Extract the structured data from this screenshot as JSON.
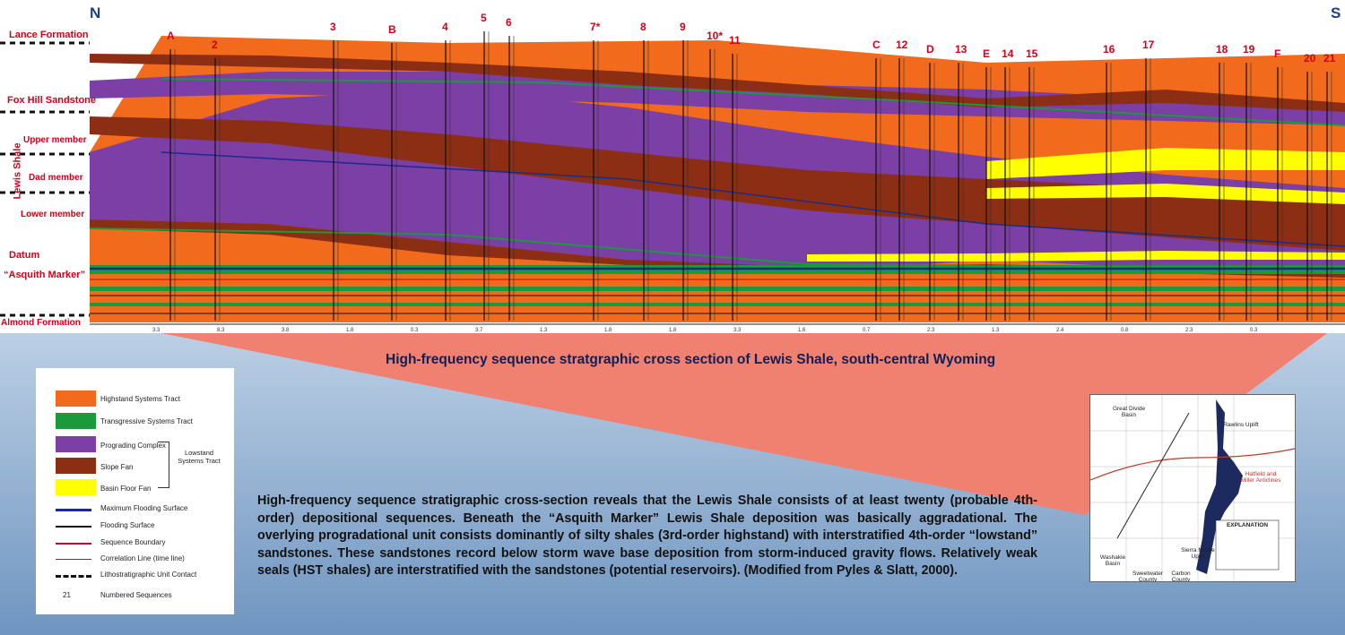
{
  "compass": {
    "north": "N",
    "south": "S"
  },
  "formations": [
    {
      "name": "Lance Formation"
    },
    {
      "name": "Fox Hill Sandstone"
    },
    {
      "name": "Upper member"
    },
    {
      "name": "Dad member"
    },
    {
      "name": "Lower member"
    },
    {
      "name": "Datum"
    },
    {
      "name": "“Asquith Marker”"
    },
    {
      "name": "Almond Formation"
    }
  ],
  "lewis_shale_label": "Lewis Shale",
  "wells": [
    "A",
    "2",
    "3",
    "B",
    "4",
    "5",
    "6",
    "7*",
    "8",
    "9",
    "10*",
    "11",
    "C",
    "12",
    "D",
    "13",
    "E",
    "14",
    "15",
    "16",
    "17",
    "18",
    "19",
    "F",
    "20",
    "21"
  ],
  "well_spacings": [
    "3.3",
    "8.3",
    "3.8",
    "1.8",
    "0.3",
    "3.7",
    "1.3",
    "1.8",
    "1.8",
    "3.3",
    "1.6",
    "0.7",
    "2.3",
    "1.3",
    "2.4",
    "0.8",
    "2.3",
    "0.3"
  ],
  "caption": "High-frequency sequence stratgraphic cross section of Lewis Shale, south-central Wyoming",
  "colors": {
    "highstand": "#f26a1b",
    "transgressive": "#1a9a3a",
    "prograding": "#7b3fa6",
    "slope_fan": "#8b2e14",
    "basin_floor_fan": "#ffff00",
    "max_flooding": "#1c2a8f",
    "flooding": "#111111",
    "sequence_boundary": "#d0021b",
    "callout": "#f08070"
  },
  "legend": {
    "swatches": [
      {
        "label": "Highstand Systems Tract"
      },
      {
        "label": "Transgressive Systems Tract"
      },
      {
        "label": "Prograding Complex"
      },
      {
        "label": "Slope Fan"
      },
      {
        "label": "Basin Floor Fan"
      }
    ],
    "bracket_label": "Lowstand Systems Tract",
    "lines": [
      {
        "label": "Maximum Flooding Surface"
      },
      {
        "label": "Flooding Surface"
      },
      {
        "label": "Sequence Boundary"
      },
      {
        "label": "Correlation Line (time line)"
      },
      {
        "label": "Lithostratigraphic Unit Contact"
      }
    ],
    "numbered": {
      "value": "21",
      "label": "Numbered Sequences"
    }
  },
  "description": "High-frequency sequence stratigraphic cross-section reveals that the Lewis Shale consists of at least twenty (probable 4th-order) depositional sequences. Beneath the “Asquith Marker” Lewis Shale deposition was basically aggradational. The overlying progradational unit consists dominantly of silty shales (3rd-order highstand) with interstratified 4th-order “lowstand” sandstones. These sandstones record below storm wave base deposition from storm-induced gravity flows. Relatively weak seals (HST shales) are interstratified with the sandstones (potential reservoirs). (Modified from Pyles & Slatt, 2000).",
  "map": {
    "labels": [
      "Great Divide Basin",
      "Washakie Basin",
      "Sierra Madre Uplift",
      "Rawlins Uplift",
      "Hatfield and Miller Anticlines",
      "Sweetwater County",
      "Carbon County",
      "EXPLANATION"
    ]
  }
}
